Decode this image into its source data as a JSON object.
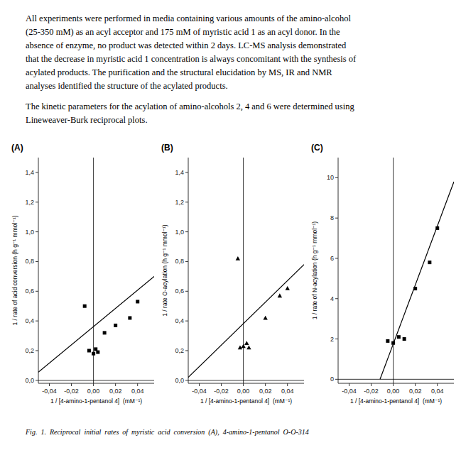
{
  "paragraphs": [
    [
      "All experiments were performed in media containing various amounts of the amino-alcohol",
      "(25-350 mM) as an acyl acceptor and 175 mM of myristic acid 1 as an acyl donor. In the",
      "absence of enzyme, no product was detected within 2 days. LC-MS analysis demonstrated",
      "that the decrease in myristic acid 1 concentration is always concomitant with the synthesis of",
      "acylated products. The purification and the structural elucidation by MS, IR and NMR",
      "analyses identified the structure of the acylated products."
    ],
    [
      "The kinetic parameters for the acylation of amino-alcohols 2, 4 and 6 were determined using",
      "Lineweaver-Burk reciprocal plots."
    ]
  ],
  "caption": "Fig.  1.  Reciprocal  initial  rates  of  myristic  acid  conversion  (A),  4-amino-1-pentanol  O-O-314",
  "chart_data": [
    {
      "type": "scatter",
      "title": "(A)",
      "y_label": "1 / rate of acid conversion (h g⁻¹ mmol⁻¹)",
      "x_label": "1 / [4-amino-1-pentanol 4]  (mM⁻¹)",
      "xlim": [
        -0.05,
        0.055
      ],
      "ylim": [
        -0.02,
        1.5
      ],
      "xticks": [
        {
          "value": -0.04,
          "label": "-0,04"
        },
        {
          "value": -0.02,
          "label": "-0,02"
        },
        {
          "value": 0.0,
          "label": "0,00"
        },
        {
          "value": 0.02,
          "label": "0,02"
        },
        {
          "value": 0.04,
          "label": "0,04"
        }
      ],
      "yticks": [
        {
          "value": 0.0,
          "label": "0,0"
        },
        {
          "value": 0.2,
          "label": "0,2"
        },
        {
          "value": 0.4,
          "label": "0,4"
        },
        {
          "value": 0.6,
          "label": "0,6"
        },
        {
          "value": 0.8,
          "label": "0,8"
        },
        {
          "value": 1.0,
          "label": "1,0"
        },
        {
          "value": 1.2,
          "label": "1,2"
        },
        {
          "value": 1.4,
          "label": "1,4"
        }
      ],
      "grid": false,
      "series": [
        {
          "type": "scatter",
          "marker": "square",
          "color": "#000000",
          "x": [
            -0.008,
            -0.004,
            0.0,
            0.002,
            0.004,
            0.01,
            0.02,
            0.033,
            0.04
          ],
          "values": [
            0.5,
            0.2,
            0.18,
            0.21,
            0.19,
            0.32,
            0.37,
            0.42,
            0.53
          ]
        },
        {
          "type": "line",
          "color": "#000000",
          "x": [
            -0.05,
            0.055
          ],
          "values": [
            0.055,
            0.7
          ]
        }
      ]
    },
    {
      "type": "scatter",
      "title": "(B)",
      "y_label": "1 / rate O-acylation (h g⁻¹ mmol⁻¹)",
      "x_label": "1 / [4-amino-1-pentanol 4]  (mM⁻¹)",
      "xlim": [
        -0.05,
        0.055
      ],
      "ylim": [
        -0.02,
        1.5
      ],
      "xticks": [
        {
          "value": -0.04,
          "label": "-0,04"
        },
        {
          "value": -0.02,
          "label": "-0,02"
        },
        {
          "value": 0.0,
          "label": "0,00"
        },
        {
          "value": 0.02,
          "label": "0,02"
        },
        {
          "value": 0.04,
          "label": "0,04"
        }
      ],
      "yticks": [
        {
          "value": 0.0,
          "label": "0,0"
        },
        {
          "value": 0.2,
          "label": "0,2"
        },
        {
          "value": 0.4,
          "label": "0,4"
        },
        {
          "value": 0.6,
          "label": "0,6"
        },
        {
          "value": 0.8,
          "label": "0,8"
        },
        {
          "value": 1.0,
          "label": "1,0"
        },
        {
          "value": 1.2,
          "label": "1,2"
        },
        {
          "value": 1.4,
          "label": "1,4"
        }
      ],
      "grid": false,
      "series": [
        {
          "type": "scatter",
          "marker": "triangle",
          "color": "#000000",
          "x": [
            -0.005,
            -0.003,
            0.0,
            0.003,
            0.005,
            0.02,
            0.033,
            0.04
          ],
          "values": [
            0.82,
            0.22,
            0.23,
            0.25,
            0.22,
            0.42,
            0.57,
            0.62
          ]
        },
        {
          "type": "line",
          "color": "#000000",
          "x": [
            -0.05,
            0.055
          ],
          "values": [
            0.02,
            0.78
          ]
        }
      ]
    },
    {
      "type": "scatter",
      "title": "(C)",
      "y_label": "1 / rate of N-acylation (h g⁻¹ mmol⁻¹)",
      "x_label": "1 / [4-amino-1-pentanol 4]  (mM⁻¹)",
      "xlim": [
        -0.05,
        0.055
      ],
      "ylim": [
        -0.2,
        11.0
      ],
      "xticks": [
        {
          "value": -0.04,
          "label": "-0,04"
        },
        {
          "value": -0.02,
          "label": "-0,02"
        },
        {
          "value": 0.0,
          "label": "0,00"
        },
        {
          "value": 0.02,
          "label": "0,02"
        },
        {
          "value": 0.04,
          "label": "0,04"
        }
      ],
      "yticks": [
        0,
        2,
        4,
        6,
        8,
        10
      ],
      "grid": false,
      "series": [
        {
          "type": "scatter",
          "marker": "square",
          "color": "#000000",
          "x": [
            -0.005,
            0.0,
            0.005,
            0.01,
            0.02,
            0.033,
            0.04
          ],
          "values": [
            1.9,
            1.8,
            2.1,
            2.0,
            4.5,
            5.8,
            7.5
          ]
        },
        {
          "type": "line",
          "color": "#000000",
          "x": [
            -0.012,
            0.055
          ],
          "values": [
            0.0,
            9.8
          ]
        }
      ]
    }
  ]
}
